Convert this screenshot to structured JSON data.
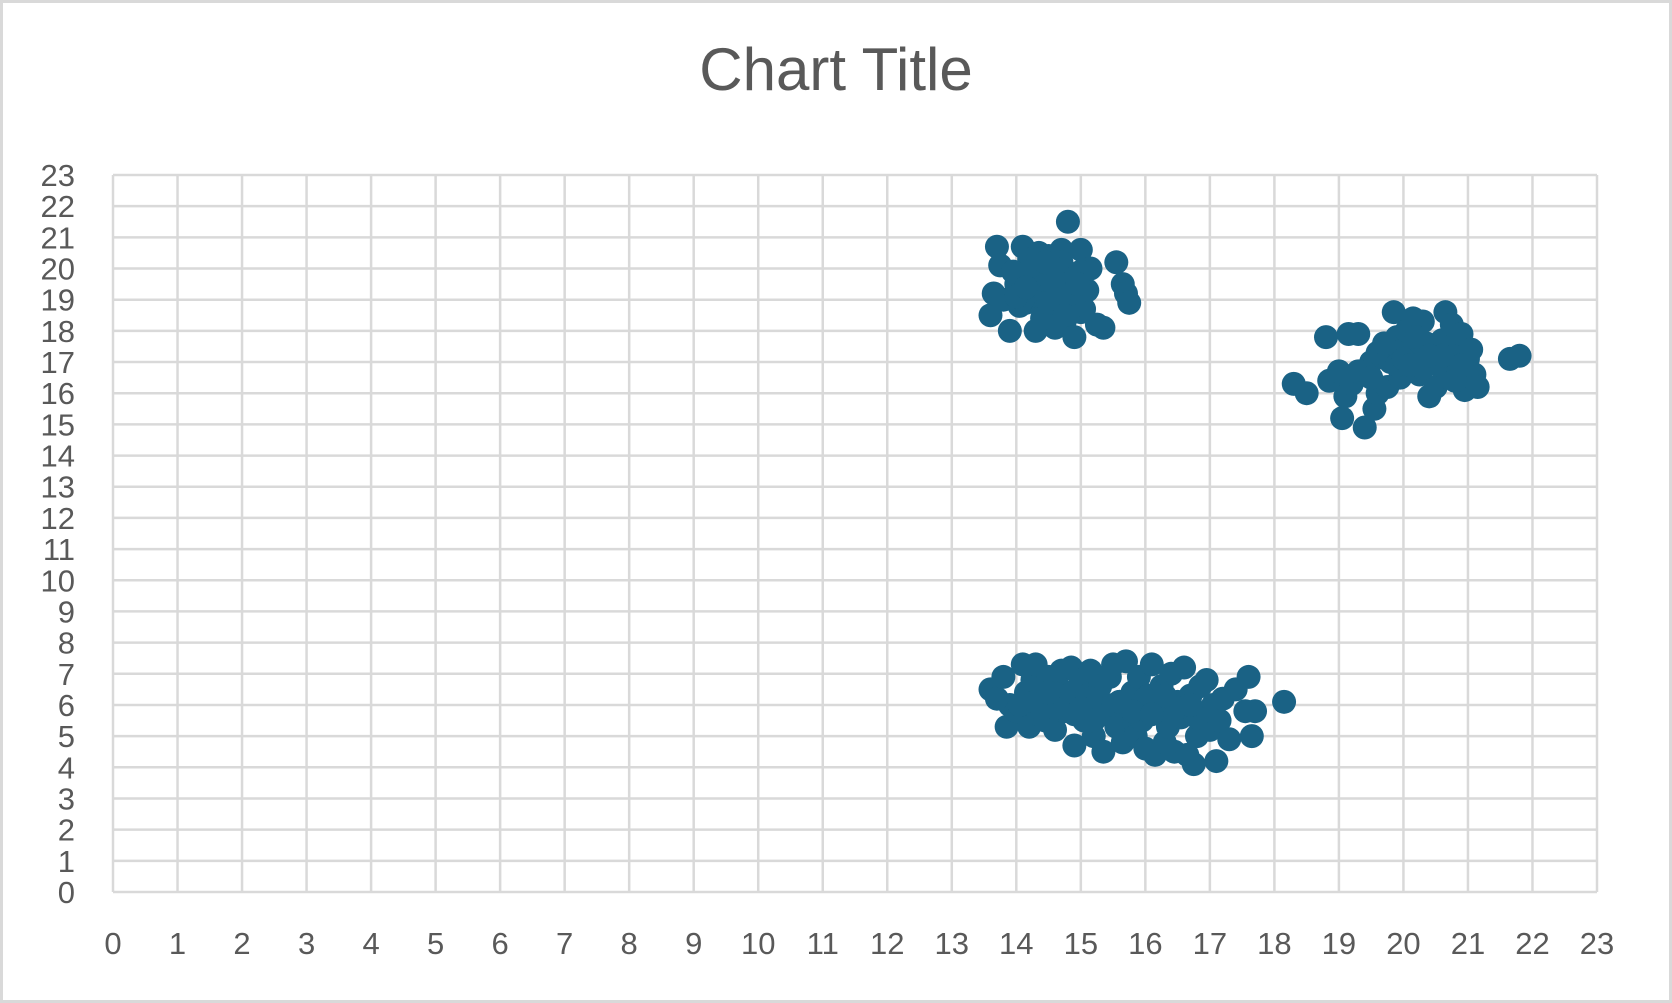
{
  "chart_data": {
    "type": "scatter",
    "title": "Chart Title",
    "xlabel": "",
    "ylabel": "",
    "xlim": [
      0,
      23
    ],
    "ylim": [
      0,
      23
    ],
    "x_ticks": [
      0,
      1,
      2,
      3,
      4,
      5,
      6,
      7,
      8,
      9,
      10,
      11,
      12,
      13,
      14,
      15,
      16,
      17,
      18,
      19,
      20,
      21,
      22,
      23
    ],
    "y_ticks": [
      0,
      1,
      2,
      3,
      4,
      5,
      6,
      7,
      8,
      9,
      10,
      11,
      12,
      13,
      14,
      15,
      16,
      17,
      18,
      19,
      20,
      21,
      22,
      23
    ],
    "grid": true,
    "legend": "none",
    "marker_color": "#1a6285",
    "series": [
      {
        "x": [
          13.6,
          13.7,
          13.65,
          13.75,
          13.8,
          13.9,
          14.0,
          14.1,
          14.15,
          14.2,
          14.25,
          14.3,
          14.35,
          14.4,
          14.45,
          14.5,
          14.55,
          14.6,
          14.65,
          14.7,
          14.75,
          14.8,
          14.85,
          14.9,
          14.95,
          15.0,
          15.05,
          15.1,
          15.15,
          15.25,
          15.35,
          15.55,
          15.65,
          15.7,
          15.75,
          13.95,
          14.05,
          14.3,
          14.45,
          14.6,
          14.7,
          14.8,
          14.9,
          15.0,
          14.2,
          14.4,
          14.6,
          14.8,
          15.0,
          14.1,
          14.3,
          14.5,
          14.7,
          14.9,
          14.0,
          14.25,
          14.55,
          14.85,
          14.35,
          14.65,
          14.15,
          14.45,
          14.75,
          14.95
        ],
        "y": [
          18.5,
          20.7,
          19.2,
          20.1,
          19.0,
          18.0,
          19.5,
          20.7,
          18.9,
          20.3,
          19.4,
          18.0,
          20.5,
          19.2,
          18.6,
          20.4,
          19.8,
          18.1,
          19.1,
          20.6,
          18.3,
          21.5,
          19.6,
          17.8,
          19.3,
          20.6,
          18.7,
          19.3,
          20.0,
          18.2,
          18.1,
          20.2,
          19.5,
          19.2,
          18.9,
          19.9,
          18.8,
          19.6,
          19.9,
          19.3,
          20.2,
          19.0,
          19.7,
          18.6,
          19.1,
          18.4,
          20.0,
          19.4,
          19.9,
          19.0,
          19.8,
          18.9,
          19.5,
          18.8,
          19.1,
          20.1,
          19.6,
          19.2,
          20.3,
          19.0,
          19.4,
          20.2,
          18.5,
          19.5
        ]
      },
      {
        "x": [
          18.3,
          18.5,
          18.8,
          18.85,
          19.0,
          19.05,
          19.1,
          19.15,
          19.2,
          19.3,
          19.4,
          19.45,
          19.5,
          19.55,
          19.6,
          19.7,
          19.75,
          19.8,
          19.85,
          19.9,
          19.95,
          20.0,
          20.05,
          20.1,
          20.15,
          20.2,
          20.25,
          20.3,
          20.35,
          20.4,
          20.45,
          20.5,
          20.55,
          20.6,
          20.65,
          20.7,
          20.75,
          20.8,
          20.85,
          20.9,
          20.95,
          21.0,
          21.05,
          21.1,
          21.15,
          21.65,
          21.8,
          19.3,
          19.6,
          19.9,
          20.2,
          20.5,
          20.8,
          19.7,
          20.0,
          20.3,
          20.6,
          20.9,
          19.5,
          20.1,
          20.4
        ],
        "y": [
          16.3,
          16.0,
          17.8,
          16.4,
          16.7,
          15.2,
          15.9,
          17.9,
          16.3,
          17.9,
          14.9,
          16.8,
          17.0,
          15.5,
          16.0,
          17.5,
          16.2,
          17.0,
          18.6,
          17.8,
          16.5,
          17.4,
          18.0,
          16.9,
          18.4,
          17.2,
          16.6,
          18.3,
          17.6,
          15.9,
          17.0,
          16.2,
          16.9,
          17.7,
          18.6,
          16.5,
          18.2,
          17.4,
          16.8,
          17.9,
          16.1,
          17.1,
          17.4,
          16.6,
          16.2,
          17.1,
          17.2,
          16.7,
          17.3,
          16.9,
          17.8,
          17.5,
          16.4,
          17.6,
          17.1,
          16.8,
          17.2,
          16.9,
          16.5,
          16.9,
          17.2
        ]
      },
      {
        "x": [
          13.6,
          13.7,
          13.8,
          13.85,
          13.9,
          14.0,
          14.1,
          14.15,
          14.2,
          14.25,
          14.3,
          14.35,
          14.4,
          14.45,
          14.5,
          14.55,
          14.6,
          14.65,
          14.7,
          14.75,
          14.8,
          14.85,
          14.9,
          14.95,
          15.0,
          15.05,
          15.1,
          15.15,
          15.2,
          15.25,
          15.3,
          15.35,
          15.4,
          15.45,
          15.5,
          15.55,
          15.6,
          15.65,
          15.7,
          15.75,
          15.8,
          15.85,
          15.9,
          15.95,
          16.0,
          16.05,
          16.1,
          16.15,
          16.2,
          16.25,
          16.3,
          16.35,
          16.4,
          16.45,
          16.5,
          16.55,
          16.6,
          16.65,
          16.7,
          16.75,
          16.8,
          16.85,
          16.9,
          16.95,
          17.0,
          17.05,
          17.1,
          17.15,
          17.2,
          17.3,
          17.4,
          17.55,
          17.6,
          17.65,
          17.7,
          18.15,
          14.05,
          14.6,
          15.15,
          15.7,
          16.25,
          16.8,
          14.3,
          14.9,
          15.5,
          16.0,
          16.5,
          15.2,
          15.8,
          16.3,
          14.5,
          15.0,
          15.6,
          16.1,
          16.7
        ],
        "y": [
          6.5,
          6.2,
          6.9,
          5.3,
          6.0,
          5.8,
          7.3,
          6.4,
          5.3,
          6.8,
          7.3,
          5.7,
          6.3,
          5.5,
          6.9,
          6.0,
          5.2,
          6.6,
          7.1,
          5.8,
          6.3,
          7.2,
          4.7,
          5.9,
          6.8,
          5.5,
          6.3,
          7.1,
          5.0,
          6.0,
          6.6,
          4.5,
          5.7,
          6.9,
          7.3,
          5.3,
          6.1,
          4.8,
          7.4,
          5.6,
          6.4,
          5.0,
          6.9,
          5.5,
          4.6,
          6.3,
          7.3,
          4.4,
          5.9,
          6.6,
          4.8,
          5.3,
          7.0,
          4.5,
          6.1,
          5.6,
          7.2,
          4.4,
          6.3,
          4.1,
          5.0,
          6.6,
          5.7,
          6.8,
          5.2,
          6.0,
          4.2,
          5.5,
          6.2,
          4.9,
          6.5,
          5.8,
          6.9,
          5.0,
          5.8,
          6.1,
          6.0,
          5.9,
          6.2,
          5.8,
          6.4,
          5.6,
          6.1,
          5.7,
          6.0,
          6.2,
          5.9,
          5.5,
          5.8,
          6.3,
          6.4,
          5.9,
          6.1,
          5.7,
          6.0
        ]
      }
    ]
  }
}
